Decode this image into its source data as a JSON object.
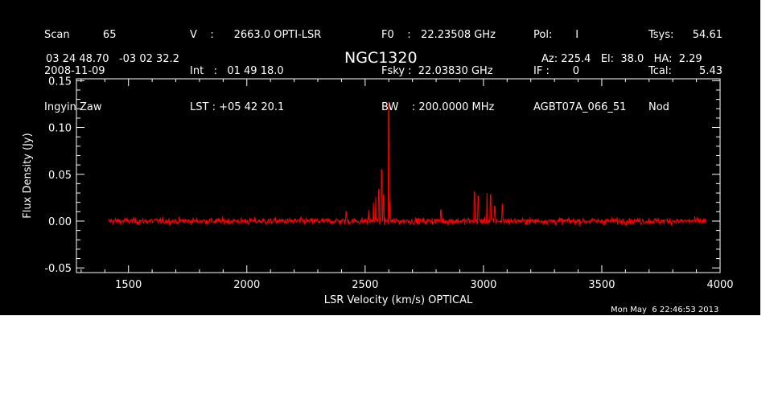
{
  "header": {
    "col1": [
      "Scan          65",
      "2008-11-09",
      "Ingyin Zaw"
    ],
    "col2": [
      "V    :      2663.0 OPTI-LSR",
      "Int   :   01 49 18.0",
      "LST : +05 42 20.1"
    ],
    "col3": [
      "F0    :   22.23508 GHz",
      "Fsky :  22.03830 GHz",
      "BW    : 200.0000 MHz"
    ],
    "col4": [
      "Pol:       I",
      "IF :       0",
      "AGBT07A_066_51"
    ],
    "col5": [
      "Tsys:",
      "Tcal:",
      "Nod"
    ],
    "col6": [
      "54.61",
      "5.43",
      ""
    ],
    "coords": "03 24 48.70   -03 02 32.2",
    "source": "NGC1320",
    "azel": "Az: 225.4   El:  38.0   HA:  2.29",
    "timestamp": "Mon May  6 22:46:53 2013"
  },
  "colors": {
    "background": "#000000",
    "axes": "#ffffff",
    "trace": "#ff0000"
  },
  "chart_data": {
    "type": "line",
    "title": "NGC1320",
    "xlabel": "LSR Velocity (km/s) OPTICAL",
    "ylabel": "Flux Density (Jy)",
    "xlim": [
      1280,
      4000
    ],
    "ylim": [
      -0.055,
      0.152
    ],
    "xticks": [
      1500,
      2000,
      2500,
      3000,
      3500,
      4000
    ],
    "yticks": [
      -0.05,
      0.0,
      0.05,
      0.1,
      0.15
    ],
    "ytick_labels": [
      "-0.05",
      "0.00",
      "0.05",
      "0.10",
      "0.15"
    ],
    "grid": false,
    "series": [
      {
        "x_range": [
          1415,
          3940
        ],
        "noise_rms": 0.0025,
        "peaks": [
          {
            "x": 2420,
            "y": 0.01
          },
          {
            "x": 2515,
            "y": 0.012
          },
          {
            "x": 2535,
            "y": 0.02
          },
          {
            "x": 2545,
            "y": 0.026
          },
          {
            "x": 2558,
            "y": 0.034
          },
          {
            "x": 2570,
            "y": 0.055
          },
          {
            "x": 2578,
            "y": 0.028
          },
          {
            "x": 2600,
            "y": 0.127
          },
          {
            "x": 2605,
            "y": 0.02
          },
          {
            "x": 2820,
            "y": 0.012
          },
          {
            "x": 2962,
            "y": 0.031
          },
          {
            "x": 2978,
            "y": 0.027
          },
          {
            "x": 3015,
            "y": 0.03
          },
          {
            "x": 3030,
            "y": 0.028
          },
          {
            "x": 3048,
            "y": 0.016
          },
          {
            "x": 3080,
            "y": 0.018
          }
        ]
      }
    ]
  }
}
